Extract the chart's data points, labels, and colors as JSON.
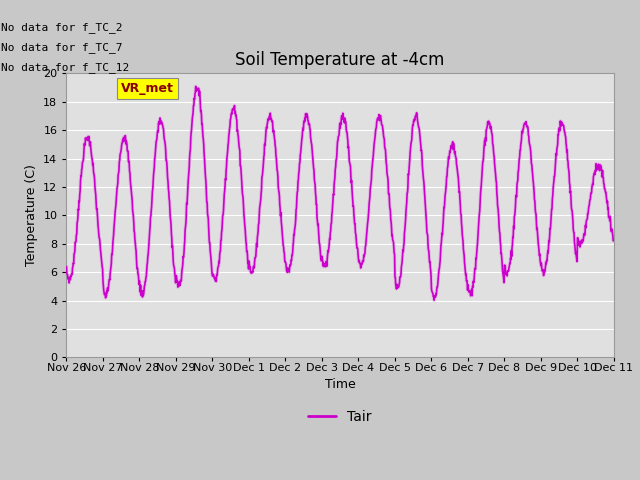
{
  "title": "Soil Temperature at -4cm",
  "xlabel": "Time",
  "ylabel": "Temperature (C)",
  "ylim": [
    0,
    20
  ],
  "yticks": [
    0,
    2,
    4,
    6,
    8,
    10,
    12,
    14,
    16,
    18,
    20
  ],
  "line_color": "#CC00CC",
  "line_shadow_color": "#DDAADD",
  "fig_bg_color": "#C8C8C8",
  "plot_bg_color": "#E0E0E0",
  "legend_label": "Tair",
  "text_annotations": [
    "No data for f_TC_2",
    "No data for f_TC_7",
    "No data for f_TC_12"
  ],
  "vr_met_label": "VR_met",
  "x_tick_labels": [
    "Nov 26",
    "Nov 27",
    "Nov 28",
    "Nov 29",
    "Nov 30",
    "Dec 1",
    "Dec 2",
    "Dec 3",
    "Dec 4",
    "Dec 5",
    "Dec 6",
    "Dec 7",
    "Dec 8",
    "Dec 9",
    "Dec 10",
    "Dec 11"
  ],
  "title_fontsize": 12,
  "axis_fontsize": 9,
  "tick_fontsize": 8,
  "annot_fontsize": 8
}
